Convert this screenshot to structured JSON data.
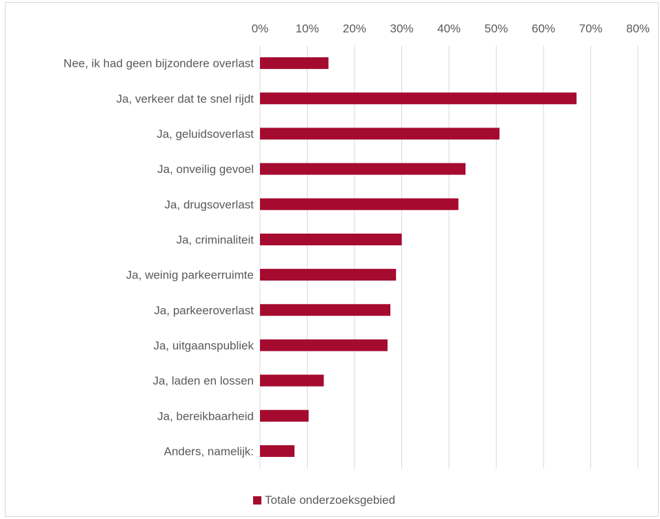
{
  "chart_data": {
    "type": "bar",
    "orientation": "horizontal",
    "categories": [
      "Nee, ik had geen bijzondere overlast",
      "Ja, verkeer dat te snel rijdt",
      "Ja, geluidsoverlast",
      "Ja, onveilig gevoel",
      "Ja, drugsoverlast",
      "Ja, criminaliteit",
      "Ja, weinig parkeerruimte",
      "Ja, parkeeroverlast",
      "Ja, uitgaanspubliek",
      "Ja, laden en lossen",
      "Ja, bereikbaarheid",
      "Anders, namelijk:"
    ],
    "series": [
      {
        "name": "Totale onderzoeksgebied",
        "values": [
          14.5,
          67,
          50.7,
          43.5,
          42,
          30,
          28.8,
          27.6,
          27,
          13.5,
          10.3,
          7.3
        ],
        "color": "#a50b2f"
      }
    ],
    "xlim": [
      0,
      80
    ],
    "tick_values": [
      0,
      10,
      20,
      30,
      40,
      50,
      60,
      70,
      80
    ],
    "tick_labels": [
      "0%",
      "10%",
      "20%",
      "30%",
      "40%",
      "50%",
      "60%",
      "70%",
      "80%"
    ],
    "x_axis_position": "top",
    "grid": true,
    "legend_position": "bottom",
    "title": "",
    "xlabel": "",
    "ylabel": ""
  }
}
